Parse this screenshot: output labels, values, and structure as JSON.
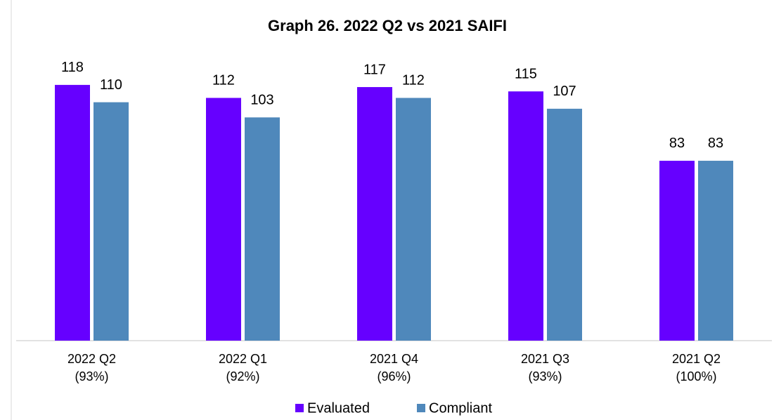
{
  "chart_data": {
    "type": "bar",
    "title": "Graph 26. 2022 Q2 vs 2021 SAIFI",
    "categories": [
      "2022 Q2\n(93%)",
      "2022 Q1\n(92%)",
      "2021 Q4\n(96%)",
      "2021 Q3\n(93%)",
      "2021 Q2\n(100%)"
    ],
    "series": [
      {
        "name": "Evaluated",
        "color": "#6600ff",
        "values": [
          118,
          112,
          117,
          115,
          83
        ]
      },
      {
        "name": "Compliant",
        "color": "#4f88bb",
        "values": [
          110,
          103,
          112,
          107,
          83
        ]
      }
    ],
    "ylim": [
      0,
      140
    ],
    "legend": "bottom"
  }
}
